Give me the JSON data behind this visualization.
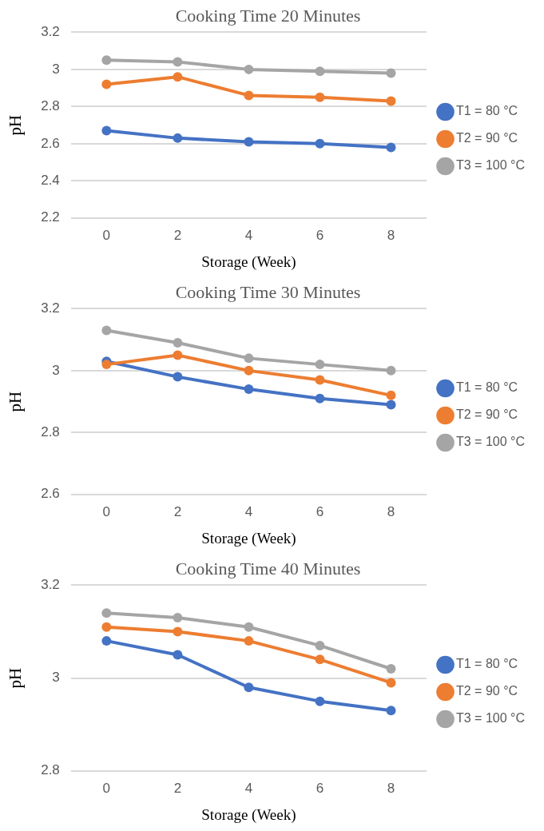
{
  "chart_data": [
    {
      "type": "line",
      "title": "Cooking Time 20 Minutes",
      "xlabel": "Storage (Week)",
      "ylabel": "pH",
      "categories": [
        "0",
        "2",
        "4",
        "6",
        "8"
      ],
      "ylim": [
        2.2,
        3.2
      ],
      "yticks": [
        2.2,
        2.4,
        2.6,
        2.8,
        3,
        3.2
      ],
      "grid": "y",
      "legend": "right",
      "marker": "circle",
      "series": [
        {
          "name": "T1 = 80 °C",
          "color": "#4472c4",
          "values": [
            2.67,
            2.63,
            2.61,
            2.6,
            2.58
          ]
        },
        {
          "name": "T2 = 90 °C",
          "color": "#ed7d31",
          "values": [
            2.92,
            2.96,
            2.86,
            2.85,
            2.83
          ]
        },
        {
          "name": "T3 = 100 °C",
          "color": "#a5a5a5",
          "values": [
            3.05,
            3.04,
            3.0,
            2.99,
            2.98
          ]
        }
      ]
    },
    {
      "type": "line",
      "title": "Cooking Time 30 Minutes",
      "xlabel": "Storage (Week)",
      "ylabel": "pH",
      "categories": [
        "0",
        "2",
        "4",
        "6",
        "8"
      ],
      "ylim": [
        2.6,
        3.2
      ],
      "yticks": [
        2.6,
        2.8,
        3,
        3.2
      ],
      "grid": "y",
      "legend": "right",
      "marker": "circle",
      "series": [
        {
          "name": "T1 = 80 °C",
          "color": "#4472c4",
          "values": [
            3.03,
            2.98,
            2.94,
            2.91,
            2.89
          ]
        },
        {
          "name": "T2 = 90 °C",
          "color": "#ed7d31",
          "values": [
            3.02,
            3.05,
            3.0,
            2.97,
            2.92
          ]
        },
        {
          "name": "T3 = 100 °C",
          "color": "#a5a5a5",
          "values": [
            3.13,
            3.09,
            3.04,
            3.02,
            3.0
          ]
        }
      ]
    },
    {
      "type": "line",
      "title": "Cooking Time 40 Minutes",
      "xlabel": "Storage (Week)",
      "ylabel": "pH",
      "categories": [
        "0",
        "2",
        "4",
        "6",
        "8"
      ],
      "ylim": [
        2.8,
        3.2
      ],
      "yticks": [
        2.8,
        3,
        3.2
      ],
      "grid": "y",
      "legend": "right",
      "marker": "circle",
      "series": [
        {
          "name": "T1 = 80 °C",
          "color": "#4472c4",
          "values": [
            3.08,
            3.05,
            2.98,
            2.95,
            2.93
          ]
        },
        {
          "name": "T2 = 90 °C",
          "color": "#ed7d31",
          "values": [
            3.11,
            3.1,
            3.08,
            3.04,
            2.99
          ]
        },
        {
          "name": "T3 = 100 °C",
          "color": "#a5a5a5",
          "values": [
            3.14,
            3.13,
            3.11,
            3.07,
            3.02
          ]
        }
      ]
    }
  ]
}
